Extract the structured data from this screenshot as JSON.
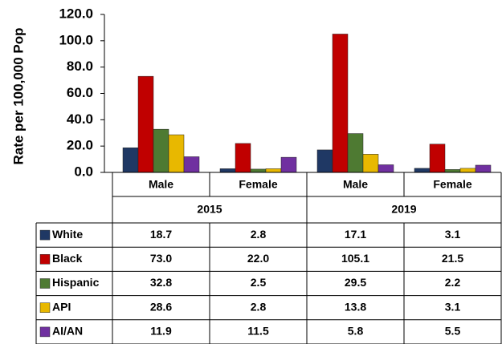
{
  "chart_data": {
    "type": "bar",
    "y_label": "Rate per 100,000 Pop",
    "categories": [
      "Male",
      "Female",
      "Male",
      "Female"
    ],
    "category_groups": [
      "2015",
      "2019"
    ],
    "ylim": [
      0,
      120
    ],
    "yticks": [
      {
        "value": 0,
        "label": "0.0"
      },
      {
        "value": 20,
        "label": "20.0"
      },
      {
        "value": 40,
        "label": "40.0"
      },
      {
        "value": 60,
        "label": "60.0"
      },
      {
        "value": 80,
        "label": "80.0"
      },
      {
        "value": 100,
        "label": "100.0"
      },
      {
        "value": 120,
        "label": "120.0"
      }
    ],
    "series": [
      {
        "name": "White",
        "color": "#1f3864",
        "values": [
          18.7,
          2.8,
          17.1,
          3.1
        ],
        "value_labels": [
          "18.7",
          "2.8",
          "17.1",
          "3.1"
        ]
      },
      {
        "name": "Black",
        "color": "#c00000",
        "values": [
          73.0,
          22.0,
          105.1,
          21.5
        ],
        "value_labels": [
          "73.0",
          "22.0",
          "105.1",
          "21.5"
        ]
      },
      {
        "name": "Hispanic",
        "color": "#4e7a32",
        "values": [
          32.8,
          2.5,
          29.5,
          2.2
        ],
        "value_labels": [
          "32.8",
          "2.5",
          "29.5",
          "2.2"
        ]
      },
      {
        "name": "API",
        "color": "#e8b800",
        "values": [
          28.6,
          2.8,
          13.8,
          3.1
        ],
        "value_labels": [
          "28.6",
          "2.8",
          "13.8",
          "3.1"
        ]
      },
      {
        "name": "AI/AN",
        "color": "#7030a0",
        "values": [
          11.9,
          11.5,
          5.8,
          5.5
        ],
        "value_labels": [
          "11.9",
          "11.5",
          "5.8",
          "5.5"
        ]
      }
    ]
  }
}
